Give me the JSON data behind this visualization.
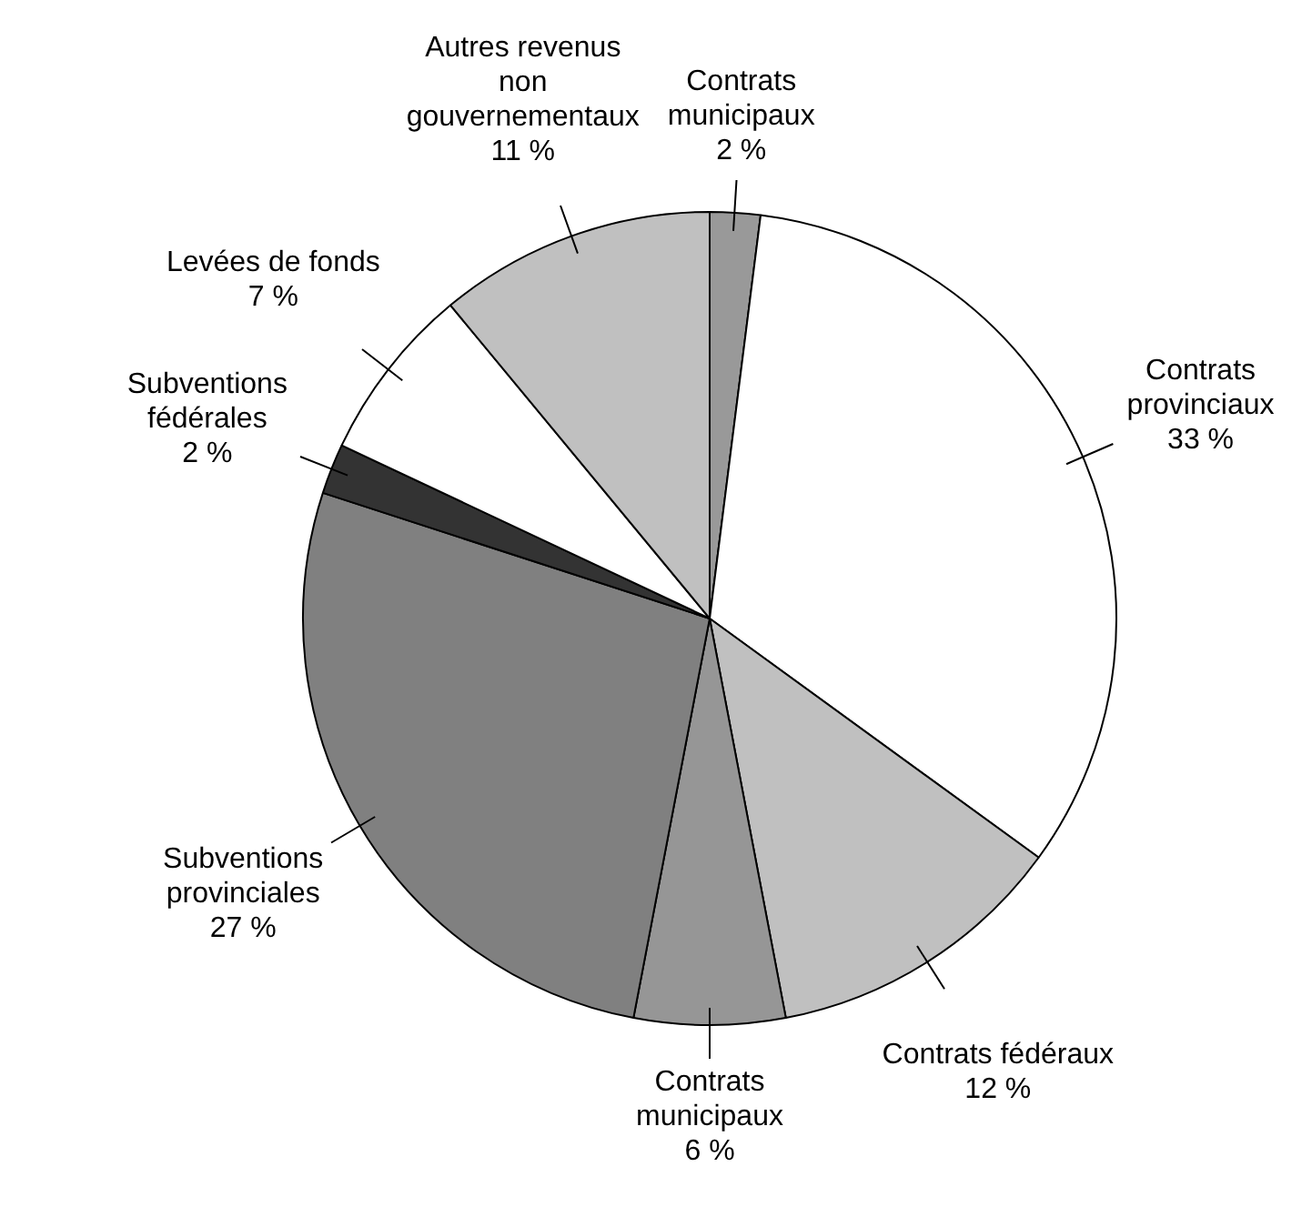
{
  "chart_data": {
    "type": "pie",
    "categories": [
      "Contrats municipaux",
      "Contrats provinciaux",
      "Contrats fédéraux",
      "Contrats municipaux",
      "Subventions provinciales",
      "Subventions fédérales",
      "Levées de fonds",
      "Autres revenus non gouvernementaux"
    ],
    "values": [
      2,
      33,
      12,
      6,
      27,
      2,
      7,
      11
    ],
    "value_labels": [
      "2 %",
      "33 %",
      "12 %",
      "6 %",
      "27 %",
      "2 %",
      "7 %",
      "11 %"
    ],
    "colors": [
      "#999999",
      "#ffffff",
      "#c0c0c0",
      "#969696",
      "#808080",
      "#333333",
      "#ffffff",
      "#c0c0c0"
    ],
    "legend": false
  }
}
